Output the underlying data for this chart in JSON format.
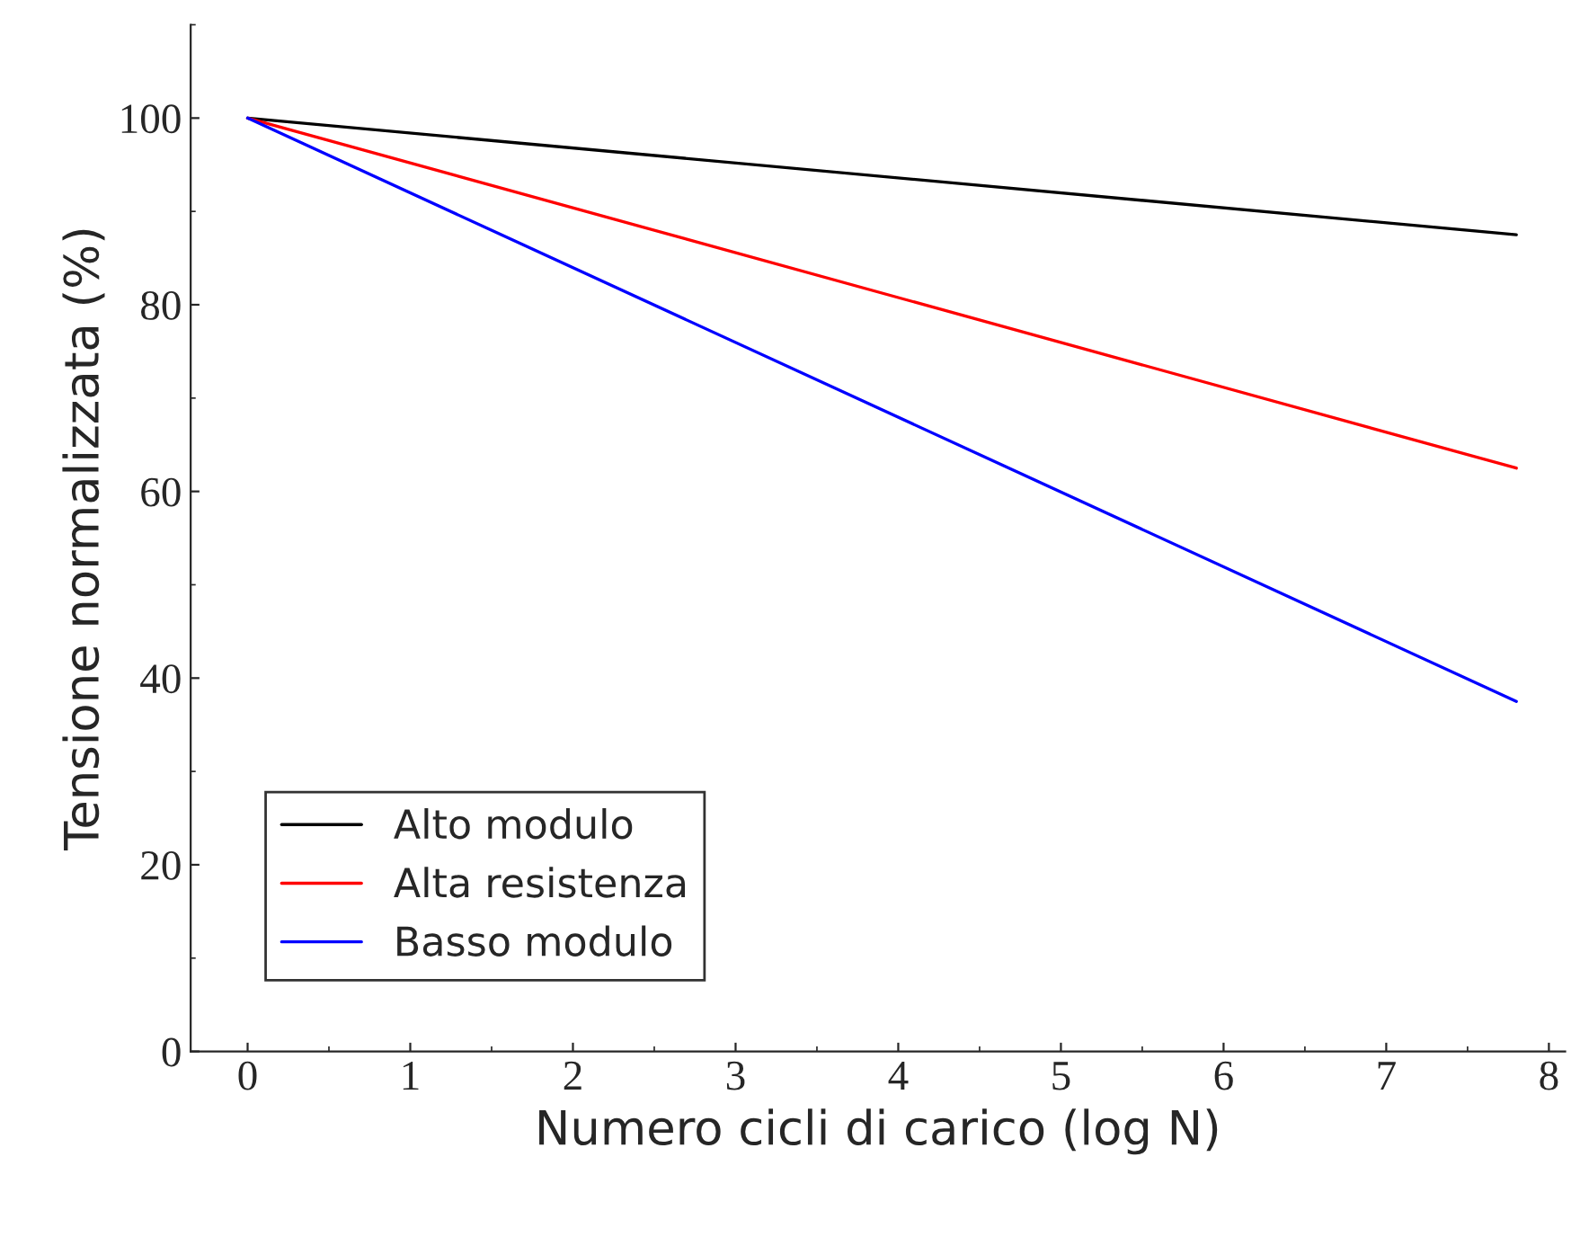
{
  "chart_data": {
    "type": "line",
    "xlabel": "Numero cicli di carico (log N)",
    "ylabel": "Tensione normalizzata (%)",
    "x": [
      0,
      7.8
    ],
    "series": [
      {
        "name": "Alto modulo",
        "color": "#000000",
        "values": [
          100,
          87.5
        ]
      },
      {
        "name": "Alta resistenza",
        "color": "#ff0000",
        "values": [
          100,
          62.5
        ]
      },
      {
        "name": "Basso modulo",
        "color": "#0000ff",
        "values": [
          100,
          37.5
        ]
      }
    ],
    "xlim": [
      -0.35,
      8.1
    ],
    "ylim": [
      0,
      110
    ],
    "xticks": [
      0,
      1,
      2,
      3,
      4,
      5,
      6,
      7,
      8
    ],
    "yticks": [
      0,
      20,
      40,
      60,
      80,
      100
    ],
    "grid": false,
    "legend": "bottom left",
    "marker": "none",
    "line_style": "solid"
  }
}
